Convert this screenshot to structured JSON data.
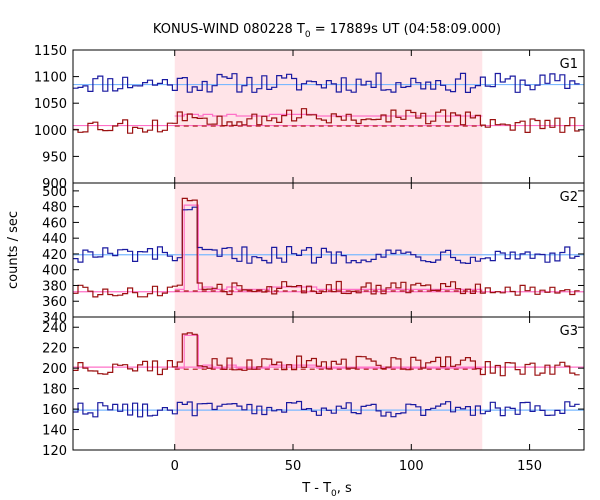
{
  "chart_data": {
    "type": "line",
    "title": "KONUS-WIND 080228 T",
    "title_sub": "0",
    "title_rest": " = 17889s UT (04:58:09.000)",
    "xlabel": "T - T",
    "xlabel_sub": "0",
    "xlabel_rest": ", s",
    "ylabel": "counts / sec",
    "xlim": [
      -43,
      173
    ],
    "x_ticks": [
      0,
      50,
      100,
      150
    ],
    "x_tick_labels": [
      "0",
      "50",
      "100",
      "150"
    ],
    "highlight_interval": [
      0,
      130
    ],
    "colors": {
      "high_energy_series": "#1a1aa0",
      "low_energy_series": "#9a1010",
      "blue_background": "#7ab8ff",
      "red_background": "#ff70c8",
      "red_fit": "#aa1010",
      "highlight_fill": "#ffe4e8"
    },
    "panels": [
      {
        "name": "G1",
        "ylim": [
          900,
          1150
        ],
        "y_ticks": [
          900,
          950,
          1000,
          1050,
          1100,
          1150
        ],
        "y_tick_labels": [
          "900",
          "950",
          "1000",
          "1050",
          "1100",
          "1150"
        ],
        "blue_background_level": 1085,
        "red_background_level": 1008,
        "red_fit_level": 1007,
        "red_source_level": 1027,
        "blue_mean": 1088,
        "blue_amp": 17,
        "red_mean": 1008,
        "red_amp": 14,
        "red_burst_offset": 20
      },
      {
        "name": "G2",
        "ylim": [
          340,
          510
        ],
        "y_ticks": [
          340,
          360,
          380,
          400,
          420,
          440,
          460,
          480,
          500
        ],
        "y_tick_labels": [
          "340",
          "360",
          "380",
          "400",
          "420",
          "440",
          "460",
          "480",
          "500"
        ],
        "blue_background_level": 419,
        "red_background_level": 372,
        "red_fit_level": 373,
        "red_source_level": 376,
        "blue_mean": 419,
        "blue_amp": 10,
        "red_mean": 373,
        "red_amp": 7,
        "red_burst_offset": 5,
        "spike": {
          "x": [
            4,
            10
          ],
          "blue_peak": 482,
          "red_peak": 492
        }
      },
      {
        "name": "G3",
        "ylim": [
          120,
          250
        ],
        "y_ticks": [
          120,
          140,
          160,
          180,
          200,
          220,
          240
        ],
        "y_tick_labels": [
          "120",
          "140",
          "160",
          "180",
          "200",
          "220",
          "240"
        ],
        "blue_background_level": 159,
        "red_background_level": 201,
        "red_fit_level": 199,
        "red_source_level": 201,
        "blue_mean": 160,
        "blue_amp": 7,
        "red_mean": 200,
        "red_amp": 7,
        "red_burst_offset": 6,
        "spike": {
          "x": [
            4,
            10
          ],
          "red_peak": 238,
          "pink_peak": 232
        }
      }
    ],
    "grid": false,
    "legend": "none"
  }
}
